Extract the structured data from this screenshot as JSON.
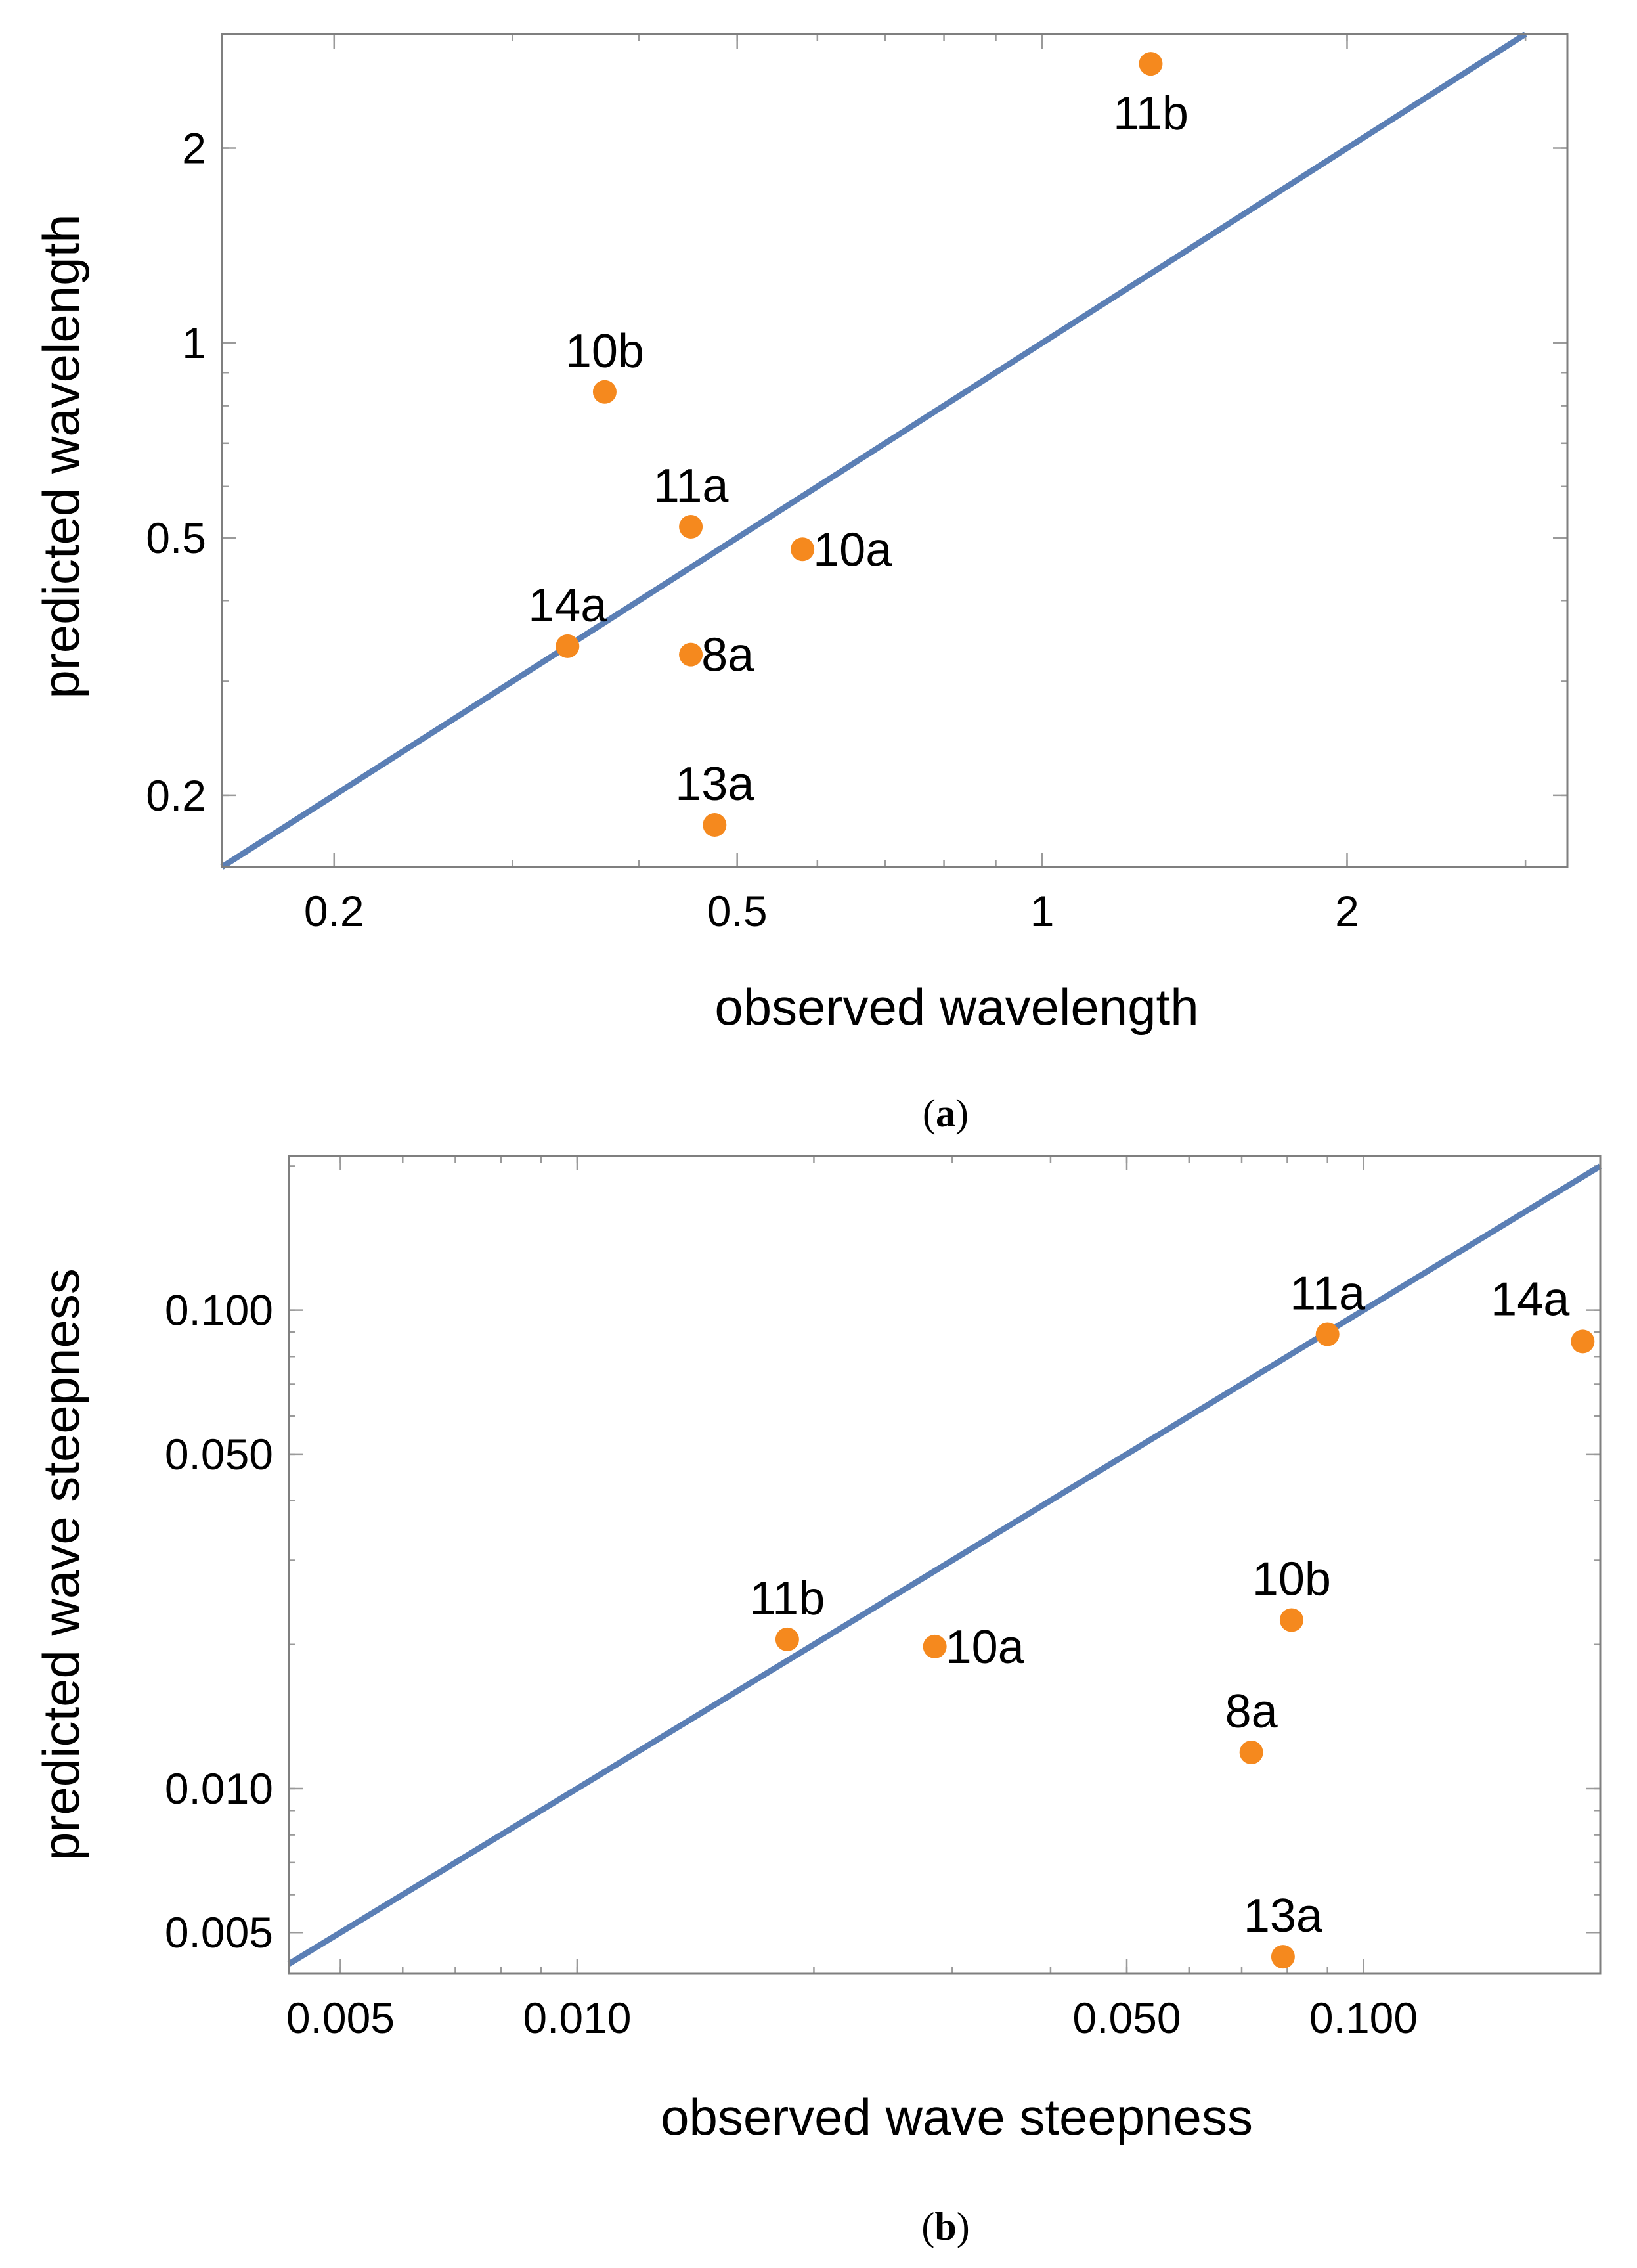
{
  "chart_data": [
    {
      "type": "scatter",
      "panel": "a",
      "caption_letter": "a",
      "xlabel": "observed wavelength",
      "ylabel": "predicted wavelength",
      "xscale": "log",
      "yscale": "log",
      "xlim": [
        0.155,
        3.3
      ],
      "ylim": [
        0.155,
        3.0
      ],
      "x_ticks": [
        {
          "value": 0.2,
          "label": "0.2"
        },
        {
          "value": 0.5,
          "label": "0.5"
        },
        {
          "value": 1,
          "label": "1"
        },
        {
          "value": 2,
          "label": "2"
        }
      ],
      "y_ticks": [
        {
          "value": 0.2,
          "label": "0.2"
        },
        {
          "value": 0.5,
          "label": "0.5"
        },
        {
          "value": 1,
          "label": "1"
        },
        {
          "value": 2,
          "label": "2"
        }
      ],
      "reference_line": "y = x",
      "points": [
        {
          "label": "11b",
          "x": 1.28,
          "y": 2.7,
          "label_pos": "below"
        },
        {
          "label": "10b",
          "x": 0.37,
          "y": 0.84,
          "label_pos": "above"
        },
        {
          "label": "11a",
          "x": 0.45,
          "y": 0.52,
          "label_pos": "above"
        },
        {
          "label": "10a",
          "x": 0.58,
          "y": 0.48,
          "label_pos": "right"
        },
        {
          "label": "14a",
          "x": 0.34,
          "y": 0.34,
          "label_pos": "above"
        },
        {
          "label": "8a",
          "x": 0.45,
          "y": 0.33,
          "label_pos": "right"
        },
        {
          "label": "13a",
          "x": 0.475,
          "y": 0.18,
          "label_pos": "above"
        }
      ]
    },
    {
      "type": "scatter",
      "panel": "b",
      "caption_letter": "b",
      "xlabel": "observed wave steepness",
      "ylabel": "predicted wave steepness",
      "xscale": "log",
      "yscale": "log",
      "xlim": [
        0.0043,
        0.2
      ],
      "ylim": [
        0.0041,
        0.21
      ],
      "x_ticks": [
        {
          "value": 0.005,
          "label": "0.005"
        },
        {
          "value": 0.01,
          "label": "0.010"
        },
        {
          "value": 0.05,
          "label": "0.050"
        },
        {
          "value": 0.1,
          "label": "0.100"
        }
      ],
      "y_ticks": [
        {
          "value": 0.005,
          "label": "0.005"
        },
        {
          "value": 0.01,
          "label": "0.010"
        },
        {
          "value": 0.05,
          "label": "0.050"
        },
        {
          "value": 0.1,
          "label": "0.100"
        }
      ],
      "reference_line": "y = x",
      "points": [
        {
          "label": "11a",
          "x": 0.09,
          "y": 0.089,
          "label_pos": "above"
        },
        {
          "label": "14a",
          "x": 0.19,
          "y": 0.086,
          "label_pos": "above-left"
        },
        {
          "label": "10b",
          "x": 0.081,
          "y": 0.0225,
          "label_pos": "above"
        },
        {
          "label": "11b",
          "x": 0.0185,
          "y": 0.0205,
          "label_pos": "above"
        },
        {
          "label": "10a",
          "x": 0.0285,
          "y": 0.0198,
          "label_pos": "right"
        },
        {
          "label": "8a",
          "x": 0.072,
          "y": 0.0119,
          "label_pos": "above"
        },
        {
          "label": "13a",
          "x": 0.079,
          "y": 0.00445,
          "label_pos": "above"
        }
      ]
    }
  ]
}
